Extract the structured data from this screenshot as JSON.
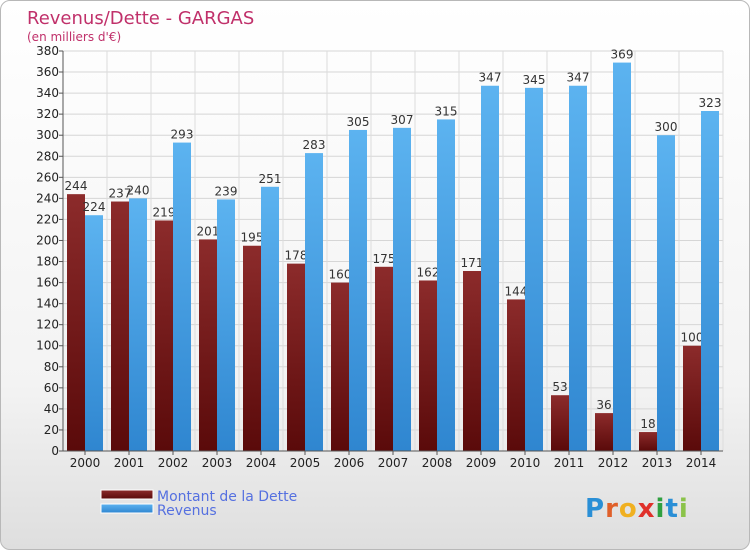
{
  "chart_data": {
    "type": "bar",
    "title": "Revenus/Dette - GARGAS",
    "subtitle": "(en milliers d'€)",
    "categories": [
      "2000",
      "2001",
      "2002",
      "2003",
      "2004",
      "2005",
      "2006",
      "2007",
      "2008",
      "2009",
      "2010",
      "2011",
      "2012",
      "2013",
      "2014"
    ],
    "series": [
      {
        "name": "Montant de la Dette",
        "color": "#7a1e1e",
        "values": [
          244,
          237,
          219,
          201,
          195,
          178,
          160,
          175,
          162,
          171,
          144,
          53,
          36,
          18,
          100
        ]
      },
      {
        "name": "Revenus",
        "color": "#4ea6e8",
        "values": [
          224,
          240,
          293,
          239,
          251,
          283,
          305,
          307,
          315,
          347,
          345,
          347,
          369,
          300,
          323
        ]
      }
    ],
    "ylim": [
      0,
      380
    ],
    "ytick_step": 20,
    "grid": true,
    "legend_position": "bottom-left"
  },
  "watermark": {
    "letters": [
      {
        "ch": "P",
        "color": "#2a8fd6"
      },
      {
        "ch": "r",
        "color": "#e0602a"
      },
      {
        "ch": "o",
        "color": "#f0b020"
      },
      {
        "ch": "x",
        "color": "#e0302a"
      },
      {
        "ch": "i",
        "color": "#30a040"
      },
      {
        "ch": "t",
        "color": "#2a8fd6"
      },
      {
        "ch": "i",
        "color": "#8bc34a"
      }
    ]
  }
}
